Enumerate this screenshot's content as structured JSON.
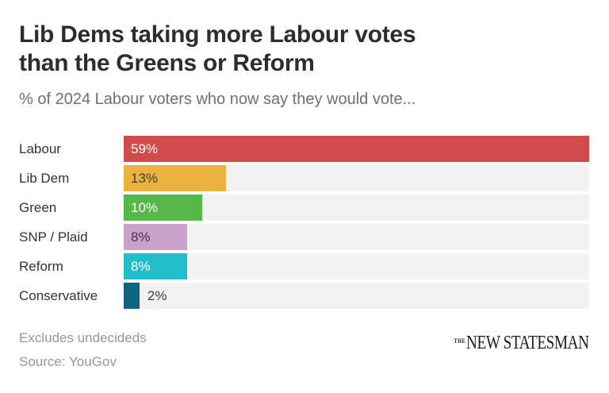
{
  "header": {
    "title": "Lib Dems taking more Labour votes than the Greens or Reform",
    "title_lines": [
      "Lib Dems taking more Labour votes",
      "than the Greens or Reform"
    ],
    "subtitle": "% of 2024 Labour voters who now say they would vote..."
  },
  "chart_data": {
    "type": "bar",
    "orientation": "horizontal",
    "title": "Lib Dems taking more Labour votes than the Greens or Reform",
    "subtitle": "% of 2024 Labour voters who now say they would vote...",
    "categories": [
      "Labour",
      "Lib Dem",
      "Green",
      "SNP / Plaid",
      "Reform",
      "Conservative"
    ],
    "values": [
      59,
      13,
      10,
      8,
      8,
      2
    ],
    "value_labels": [
      "59%",
      "13%",
      "10%",
      "8%",
      "8%",
      "2%"
    ],
    "bar_colors": [
      "#d14b4b",
      "#eab33e",
      "#56b848",
      "#c9a1c9",
      "#20bec9",
      "#0f6480"
    ],
    "label_colors": [
      "#ffffff",
      "#3d3d3d",
      "#ffffff",
      "#3d3d3d",
      "#ffffff",
      "#3d3d3d"
    ],
    "label_inside": [
      true,
      true,
      true,
      true,
      true,
      false
    ],
    "track_color": "#f2f2f2",
    "xlabel": "",
    "ylabel": "",
    "xmax": 59,
    "grid": false,
    "legend": false,
    "unit": "%"
  },
  "footer": {
    "note": "Excludes undecideds",
    "source": "Source: YouGov",
    "brand_the": "THE",
    "brand_name": "NEW STATESMAN"
  }
}
